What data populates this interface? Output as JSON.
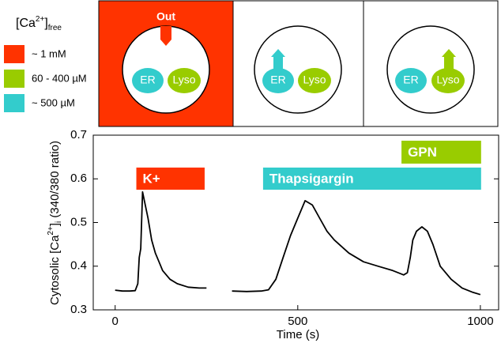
{
  "legend": {
    "title": {
      "prefix": "[Ca",
      "sup": "2+",
      "close": "]",
      "sub": "free"
    },
    "items": [
      {
        "label": "~ 1 mM",
        "color": "#ff3300"
      },
      {
        "label": "60 - 400 µM",
        "color": "#99cc00"
      },
      {
        "label": "~ 500 µM",
        "color": "#33cccc"
      }
    ]
  },
  "diagram": {
    "panels": [
      {
        "out": "Out",
        "er": "ER",
        "lyso": "Lyso"
      },
      {
        "er": "ER",
        "lyso": "Lyso"
      },
      {
        "er": "ER",
        "lyso": "Lyso"
      }
    ]
  },
  "chart_data": {
    "type": "line",
    "xlabel": "Time (s)",
    "ylabel": {
      "prefix": "Cytosolic [Ca",
      "sup": "2+",
      "close": "]",
      "sub": "i",
      "suffix": " (340/380 ratio)"
    },
    "x": [
      0,
      20,
      40,
      55,
      62,
      66,
      70,
      75,
      80,
      90,
      100,
      110,
      120,
      130,
      150,
      170,
      200,
      230,
      250,
      285,
      320,
      360,
      400,
      420,
      440,
      460,
      480,
      500,
      520,
      540,
      560,
      580,
      600,
      640,
      680,
      720,
      760,
      790,
      800,
      808,
      815,
      825,
      840,
      855,
      870,
      890,
      920,
      950,
      980,
      1000
    ],
    "series": [
      {
        "color": "#000000",
        "values": [
          0.345,
          0.343,
          0.343,
          0.344,
          0.36,
          0.42,
          0.44,
          0.57,
          0.55,
          0.51,
          0.46,
          0.43,
          0.41,
          0.39,
          0.37,
          0.36,
          0.352,
          0.35,
          0.35,
          null,
          0.343,
          0.342,
          0.343,
          0.346,
          0.37,
          0.42,
          0.47,
          0.51,
          0.55,
          0.54,
          0.51,
          0.48,
          0.46,
          0.43,
          0.41,
          0.4,
          0.39,
          0.38,
          0.385,
          0.42,
          0.46,
          0.48,
          0.49,
          0.48,
          0.45,
          0.4,
          0.37,
          0.35,
          0.34,
          0.335
        ]
      }
    ],
    "xlim": [
      -60,
      1050
    ],
    "xticks": [
      0,
      500,
      1000
    ],
    "ylim": [
      0.3,
      0.7
    ],
    "yticks": [
      0.3,
      0.4,
      0.5,
      0.6,
      0.7
    ],
    "treatments": [
      {
        "label": "K+",
        "start": 58,
        "end": 245,
        "color": "#ff3300"
      },
      {
        "label": "Thapsigargin",
        "start": 405,
        "end": 1002,
        "color": "#33cccc"
      },
      {
        "label": "GPN",
        "start": 784,
        "end": 1002,
        "color": "#99cc00"
      }
    ]
  }
}
